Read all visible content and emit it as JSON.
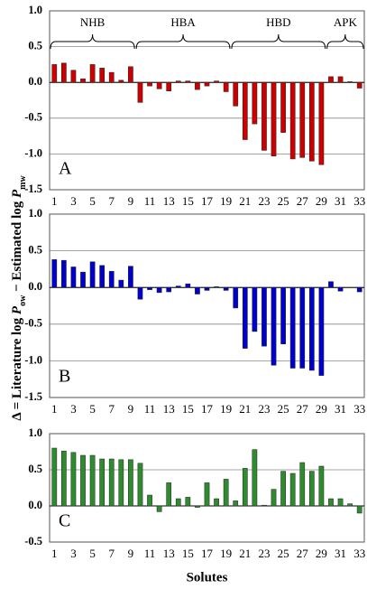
{
  "chart_data": [
    {
      "type": "bar",
      "panel_label": "A",
      "color": "#cc0000",
      "group_labels": [
        "NHB",
        "HBA",
        "HBD",
        "APK"
      ],
      "categories": [
        "1",
        null,
        "3",
        null,
        "5",
        null,
        "7",
        null,
        "9",
        null,
        "11",
        null,
        "13",
        null,
        "15",
        null,
        "17",
        null,
        "19",
        null,
        "21",
        null,
        "23",
        null,
        "25",
        null,
        "27",
        null,
        "29",
        null,
        "31",
        null,
        "33"
      ],
      "values": [
        0.25,
        0.27,
        0.17,
        0.05,
        0.25,
        0.2,
        0.14,
        0.03,
        0.22,
        -0.28,
        -0.05,
        -0.09,
        -0.12,
        0.02,
        0.02,
        -0.1,
        -0.05,
        0.02,
        -0.13,
        -0.33,
        -0.8,
        -0.58,
        -0.95,
        -1.03,
        -0.7,
        -1.07,
        -1.05,
        -1.1,
        -1.15,
        0.08,
        0.08,
        0.01,
        -0.08
      ],
      "ylim": [
        -1.5,
        1.0
      ],
      "yticks": [
        {
          "value": 1.0,
          "label": "1.0"
        },
        0.5,
        {
          "value": 0,
          "label": "0.0"
        },
        -0.5,
        {
          "value": -1.0,
          "label": "-1.0"
        },
        -1.5
      ],
      "grid": true,
      "ylabel": [
        "Δ = Literature log ",
        "P",
        "ow",
        " − Estimated log ",
        "P",
        "mw"
      ]
    },
    {
      "type": "bar",
      "panel_label": "B",
      "color": "#0000cc",
      "categories": [
        "1",
        null,
        "3",
        null,
        "5",
        null,
        "7",
        null,
        "9",
        null,
        "11",
        null,
        "13",
        null,
        "15",
        null,
        "17",
        null,
        "19",
        null,
        "21",
        null,
        "23",
        null,
        "25",
        null,
        "27",
        null,
        "29",
        null,
        "31",
        null,
        "33"
      ],
      "values": [
        0.38,
        0.37,
        0.28,
        0.21,
        0.35,
        0.3,
        0.22,
        0.1,
        0.29,
        -0.16,
        -0.03,
        -0.07,
        -0.06,
        0.02,
        0.05,
        -0.09,
        -0.04,
        0.01,
        -0.04,
        -0.28,
        -0.83,
        -0.6,
        -0.8,
        -1.06,
        -0.77,
        -1.1,
        -1.1,
        -1.13,
        -1.2,
        0.08,
        -0.05,
        0,
        -0.06
      ],
      "ylim": [
        -1.5,
        1.0
      ],
      "yticks": [
        {
          "value": 1.0,
          "label": "1.0"
        },
        0.5,
        {
          "value": 0,
          "label": "0.0"
        },
        -0.5,
        {
          "value": -1.0,
          "label": "-1.0"
        },
        -1.5
      ],
      "grid": true
    },
    {
      "type": "bar",
      "panel_label": "C",
      "color": "#2e8b2e",
      "categories": [
        "1",
        null,
        "3",
        null,
        "5",
        null,
        "7",
        null,
        "9",
        null,
        "11",
        null,
        "13",
        null,
        "15",
        null,
        "17",
        null,
        "19",
        null,
        "21",
        null,
        "23",
        null,
        "25",
        null,
        "27",
        null,
        "29",
        null,
        "31",
        null,
        "33"
      ],
      "values": [
        0.8,
        0.76,
        0.74,
        0.7,
        0.7,
        0.65,
        0.65,
        0.64,
        0.64,
        0.59,
        0.15,
        -0.08,
        0.32,
        0.1,
        0.12,
        -0.02,
        0.32,
        0.1,
        0.37,
        0.07,
        0.52,
        0.78,
        0.01,
        0.23,
        0.48,
        0.45,
        0.6,
        0.48,
        0.55,
        0.1,
        0.1,
        0.03,
        -0.1
      ],
      "ylim": [
        -0.5,
        1.0
      ],
      "yticks": [
        {
          "value": 1.0,
          "label": "1.0"
        },
        0.5,
        {
          "value": 0,
          "label": "0.0"
        },
        -0.5
      ],
      "grid": true,
      "xlabel": "Solutes"
    }
  ]
}
